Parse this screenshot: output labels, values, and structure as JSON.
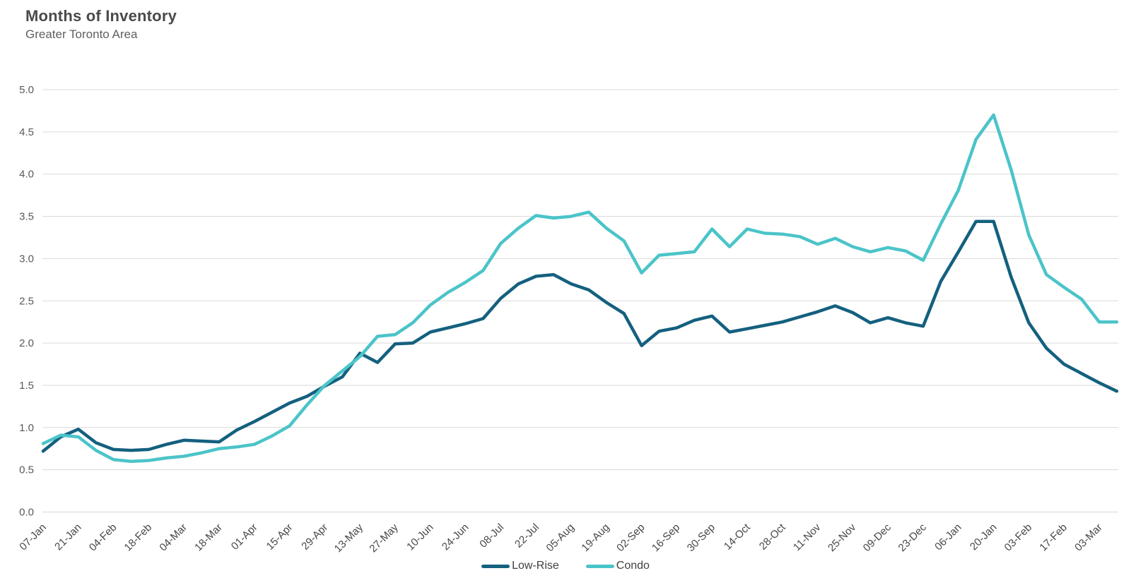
{
  "header": {
    "title": "Months of Inventory",
    "subtitle": "Greater Toronto Area"
  },
  "chart_data": {
    "type": "line",
    "title": "Months of Inventory",
    "subtitle": "Greater Toronto Area",
    "grid": "horizontal",
    "legend_position": "bottom-center",
    "ylim": [
      0,
      5
    ],
    "y_ticks": [
      0,
      0.5,
      1,
      1.5,
      2,
      2.5,
      3,
      3.5,
      4,
      4.5,
      5
    ],
    "x_tick_every": 2,
    "x_tick_labels": [
      "07-Jan",
      "21-Jan",
      "04-Feb",
      "18-Feb",
      "04-Mar",
      "18-Mar",
      "01-Apr",
      "15-Apr",
      "29-Apr",
      "13-May",
      "27-May",
      "10-Jun",
      "24-Jun",
      "08-Jul",
      "22-Jul",
      "05-Aug",
      "19-Aug",
      "02-Sep",
      "16-Sep",
      "30-Sep",
      "14-Oct",
      "28-Oct",
      "11-Nov",
      "25-Nov",
      "09-Dec",
      "23-Dec",
      "06-Jan",
      "20-Jan",
      "03-Feb",
      "17-Feb",
      "03-Mar"
    ],
    "series": [
      {
        "name": "Low-Rise",
        "color": "#14607F",
        "values": [
          0.72,
          0.89,
          0.98,
          0.82,
          0.74,
          0.73,
          0.74,
          0.8,
          0.85,
          0.84,
          0.83,
          0.97,
          1.07,
          1.18,
          1.29,
          1.37,
          1.49,
          1.6,
          1.88,
          1.77,
          1.99,
          2.0,
          2.13,
          2.18,
          2.23,
          2.29,
          2.53,
          2.7,
          2.79,
          2.81,
          2.7,
          2.63,
          2.48,
          2.35,
          1.97,
          2.14,
          2.18,
          2.27,
          2.32,
          2.13,
          2.17,
          2.21,
          2.25,
          2.31,
          2.37,
          2.44,
          2.36,
          2.24,
          2.3,
          2.24,
          2.2,
          2.73,
          3.08,
          3.44,
          3.44,
          2.78,
          2.24,
          1.94,
          1.75,
          1.64,
          1.53,
          1.43
        ]
      },
      {
        "name": "Condo",
        "color": "#4BC4C9",
        "values": [
          0.81,
          0.91,
          0.89,
          0.73,
          0.62,
          0.6,
          0.61,
          0.64,
          0.66,
          0.7,
          0.75,
          0.77,
          0.8,
          0.9,
          1.02,
          1.27,
          1.5,
          1.67,
          1.84,
          2.08,
          2.1,
          2.24,
          2.45,
          2.6,
          2.72,
          2.86,
          3.18,
          3.36,
          3.51,
          3.48,
          3.5,
          3.55,
          3.36,
          3.21,
          2.83,
          3.04,
          3.06,
          3.08,
          3.35,
          3.14,
          3.35,
          3.3,
          3.29,
          3.26,
          3.17,
          3.24,
          3.14,
          3.08,
          3.13,
          3.09,
          2.98,
          3.41,
          3.81,
          4.41,
          4.7,
          4.05,
          3.28,
          2.81,
          2.66,
          2.52,
          2.25,
          2.25
        ]
      }
    ]
  },
  "colors": {
    "gridline": "#D9D9D9",
    "background": "#FFFFFF",
    "title_text": "#4A4A4A",
    "axis_text": "#595959"
  }
}
